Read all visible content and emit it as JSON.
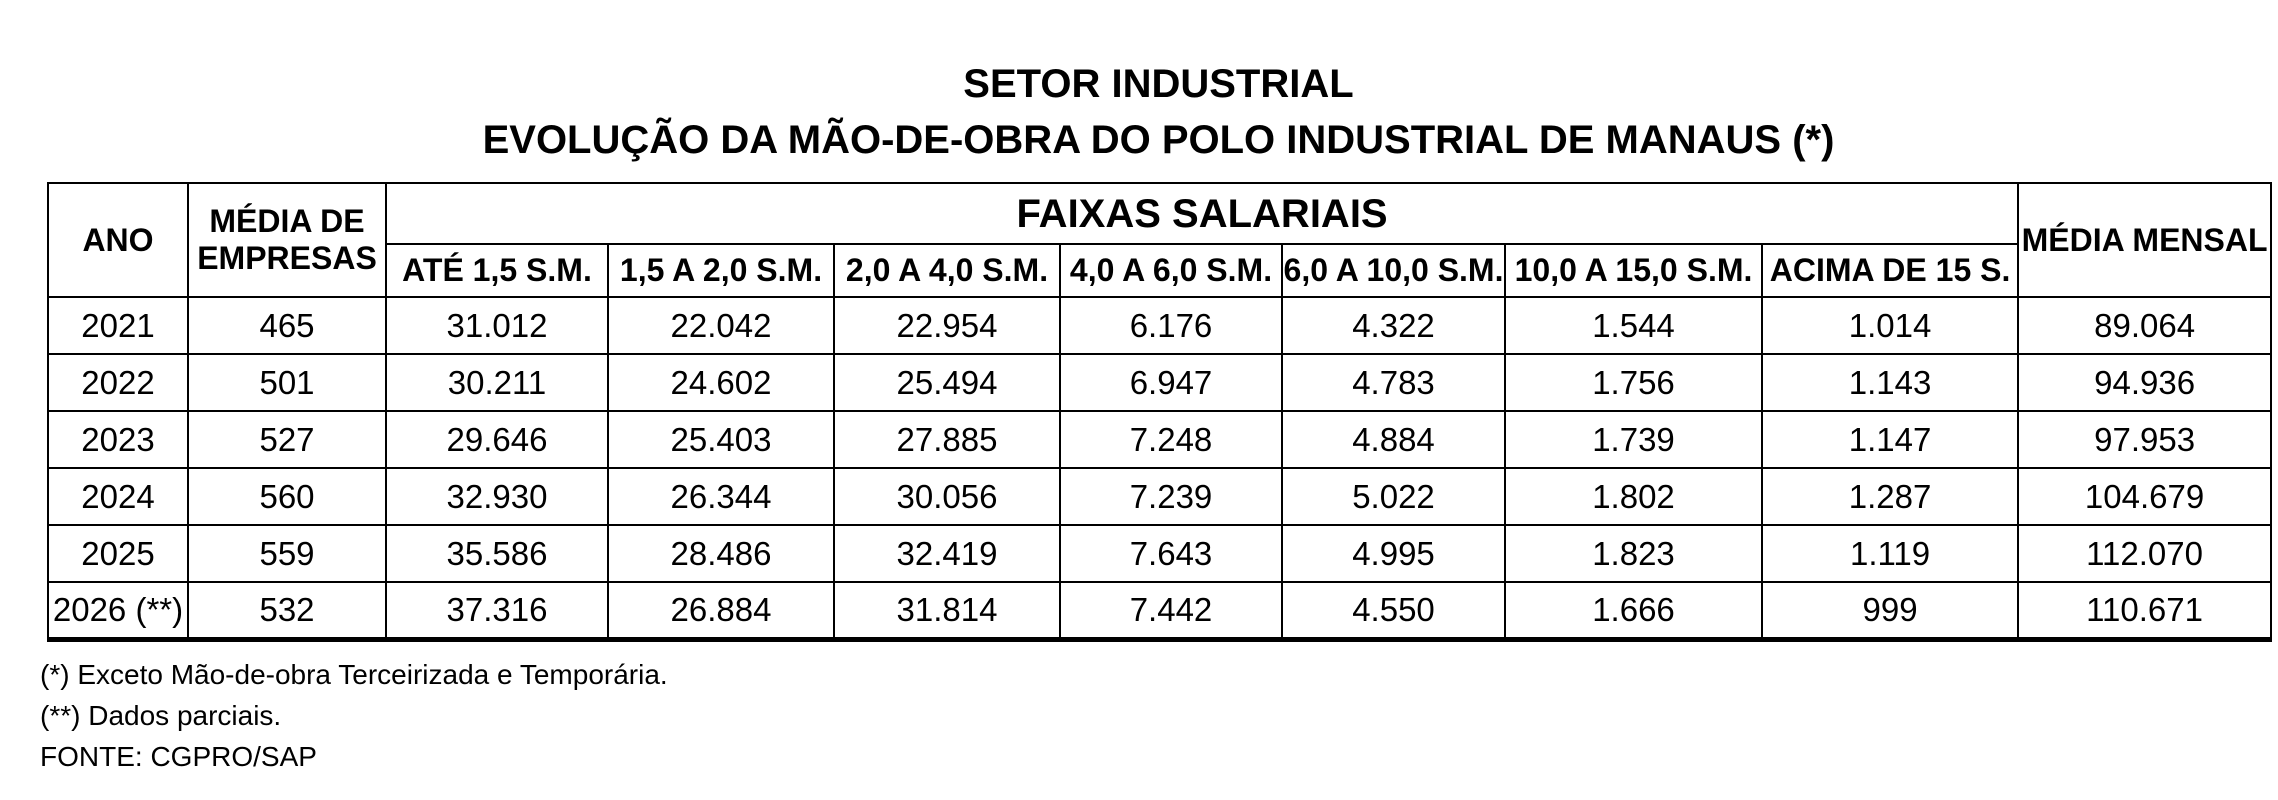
{
  "title": {
    "line1": "SETOR INDUSTRIAL",
    "line2": "EVOLUÇÃO DA MÃO-DE-OBRA DO POLO INDUSTRIAL DE MANAUS (*)"
  },
  "table": {
    "headers": {
      "ano": "ANO",
      "media_empresas": "MÉDIA DE EMPRESAS",
      "faixas_salariais": "FAIXAS SALARIAIS",
      "media_mensal": "MÉDIA MENSAL"
    },
    "faixas_subheaders": [
      "ATÉ 1,5 S.M.",
      "1,5 A 2,0 S.M.",
      "2,0 A 4,0 S.M.",
      "4,0 A 6,0 S.M.",
      "6,0 A 10,0 S.M.",
      "10,0  A 15,0 S.M.",
      "ACIMA DE 15 S."
    ],
    "rows": [
      {
        "ano": "2021",
        "media_empresas": "465",
        "faixas": [
          "31.012",
          "22.042",
          "22.954",
          "6.176",
          "4.322",
          "1.544",
          "1.014"
        ],
        "media_mensal": "89.064"
      },
      {
        "ano": "2022",
        "media_empresas": "501",
        "faixas": [
          "30.211",
          "24.602",
          "25.494",
          "6.947",
          "4.783",
          "1.756",
          "1.143"
        ],
        "media_mensal": "94.936"
      },
      {
        "ano": "2023",
        "media_empresas": "527",
        "faixas": [
          "29.646",
          "25.403",
          "27.885",
          "7.248",
          "4.884",
          "1.739",
          "1.147"
        ],
        "media_mensal": "97.953"
      },
      {
        "ano": "2024",
        "media_empresas": "560",
        "faixas": [
          "32.930",
          "26.344",
          "30.056",
          "7.239",
          "5.022",
          "1.802",
          "1.287"
        ],
        "media_mensal": "104.679"
      },
      {
        "ano": "2025",
        "media_empresas": "559",
        "faixas": [
          "35.586",
          "28.486",
          "32.419",
          "7.643",
          "4.995",
          "1.823",
          "1.119"
        ],
        "media_mensal": "112.070"
      },
      {
        "ano": "2026 (**)",
        "media_empresas": "532",
        "faixas": [
          "37.316",
          "26.884",
          "31.814",
          "7.442",
          "4.550",
          "1.666",
          "999"
        ],
        "media_mensal": "110.671"
      }
    ]
  },
  "footnotes": [
    "(*) Exceto Mão-de-obra Terceirizada e Temporária.",
    "(**) Dados parciais.",
    "FONTE: CGPRO/SAP"
  ],
  "colors": {
    "text": "#000000",
    "border": "#000000",
    "background": "#ffffff"
  },
  "chart_data": {
    "type": "table",
    "title": "SETOR INDUSTRIAL — EVOLUÇÃO DA MÃO-DE-OBRA DO POLO INDUSTRIAL DE MANAUS (*)",
    "columns": [
      "ANO",
      "MÉDIA DE EMPRESAS",
      "ATÉ 1,5 S.M.",
      "1,5 A 2,0 S.M.",
      "2,0 A 4,0 S.M.",
      "4,0 A 6,0 S.M.",
      "6,0 A 10,0 S.M.",
      "10,0 A 15,0 S.M.",
      "ACIMA DE 15 S.",
      "MÉDIA MENSAL"
    ],
    "rows": [
      [
        "2021",
        465,
        31012,
        22042,
        22954,
        6176,
        4322,
        1544,
        1014,
        89064
      ],
      [
        "2022",
        501,
        30211,
        24602,
        25494,
        6947,
        4783,
        1756,
        1143,
        94936
      ],
      [
        "2023",
        527,
        29646,
        25403,
        27885,
        7248,
        4884,
        1739,
        1147,
        97953
      ],
      [
        "2024",
        560,
        32930,
        26344,
        30056,
        7239,
        5022,
        1802,
        1287,
        104679
      ],
      [
        "2025",
        559,
        35586,
        28486,
        32419,
        7643,
        4995,
        1823,
        1119,
        112070
      ],
      [
        "2026 (**)",
        532,
        37316,
        26884,
        31814,
        7442,
        4550,
        1666,
        999,
        110671
      ]
    ],
    "footnotes": [
      "(*) Exceto Mão-de-obra Terceirizada e Temporária.",
      "(**) Dados parciais.",
      "FONTE: CGPRO/SAP"
    ]
  }
}
